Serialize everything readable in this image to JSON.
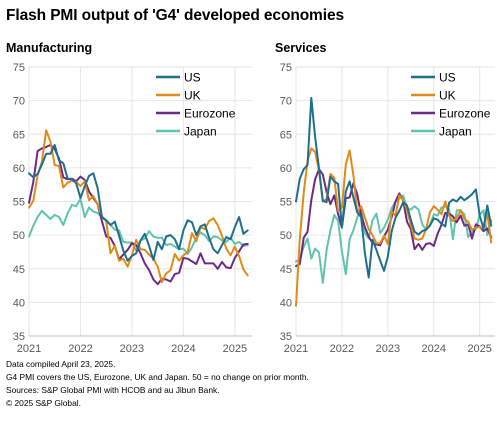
{
  "title": "Flash PMI output of 'G4' developed economies",
  "footnotes": [
    "Data compiled April 23, 2025.",
    "G4 PMI covers the US, Eurozone, UK and Japan. 50 = no change on prior month.",
    "Sources: S&P Global PMI with HCOB and au Jibun Bank.",
    "© 2025 S&P Global."
  ],
  "series_colors": {
    "US": "#1d6f8c",
    "UK": "#e08a18",
    "Eurozone": "#6b2a86",
    "Japan": "#5ec4ad"
  },
  "chart_data": [
    {
      "type": "line",
      "title": "Manufacturing",
      "xlabel": "",
      "ylabel": "",
      "ylim": [
        35,
        75
      ],
      "yticks": [
        35,
        40,
        45,
        50,
        55,
        60,
        65,
        70,
        75
      ],
      "xticks": [
        "2021",
        "2022",
        "2023",
        "2024",
        "2025"
      ],
      "x": [
        "2021-01",
        "2021-02",
        "2021-03",
        "2021-04",
        "2021-05",
        "2021-06",
        "2021-07",
        "2021-08",
        "2021-09",
        "2021-10",
        "2021-11",
        "2021-12",
        "2022-01",
        "2022-02",
        "2022-03",
        "2022-04",
        "2022-05",
        "2022-06",
        "2022-07",
        "2022-08",
        "2022-09",
        "2022-10",
        "2022-11",
        "2022-12",
        "2023-01",
        "2023-02",
        "2023-03",
        "2023-04",
        "2023-05",
        "2023-06",
        "2023-07",
        "2023-08",
        "2023-09",
        "2023-10",
        "2023-11",
        "2023-12",
        "2024-01",
        "2024-02",
        "2024-03",
        "2024-04",
        "2024-05",
        "2024-06",
        "2024-07",
        "2024-08",
        "2024-09",
        "2024-10",
        "2024-11",
        "2024-12",
        "2025-01",
        "2025-02",
        "2025-03",
        "2025-04"
      ],
      "series": [
        {
          "name": "US",
          "values": [
            59.2,
            58.6,
            59.1,
            60.5,
            62.1,
            62.1,
            63.4,
            61.1,
            60.7,
            58.4,
            58.3,
            57.7,
            55.5,
            57.3,
            58.8,
            59.2,
            57.0,
            52.7,
            52.2,
            51.5,
            52.0,
            49.9,
            47.7,
            46.2,
            46.9,
            47.3,
            49.2,
            50.2,
            48.4,
            46.3,
            49.0,
            47.9,
            49.8,
            50.0,
            49.4,
            47.9,
            50.7,
            52.2,
            51.9,
            50.0,
            51.3,
            51.6,
            49.6,
            47.9,
            47.3,
            48.5,
            49.7,
            49.4,
            51.2,
            52.7,
            50.2,
            50.7
          ]
        },
        {
          "name": "UK",
          "values": [
            54.1,
            55.1,
            58.9,
            60.9,
            65.6,
            63.9,
            60.4,
            60.3,
            57.1,
            57.8,
            58.1,
            57.9,
            57.3,
            58.0,
            55.2,
            55.8,
            54.6,
            52.8,
            52.1,
            47.3,
            48.4,
            46.2,
            46.5,
            45.3,
            47.0,
            49.3,
            47.9,
            47.8,
            47.1,
            46.5,
            45.3,
            43.0,
            44.3,
            44.8,
            47.2,
            46.2,
            47.0,
            47.5,
            50.3,
            49.1,
            51.2,
            50.9,
            52.1,
            52.5,
            51.5,
            49.9,
            48.0,
            47.0,
            48.3,
            46.9,
            44.9,
            44.0
          ]
        },
        {
          "name": "Eurozone",
          "values": [
            54.8,
            57.9,
            62.5,
            62.9,
            63.1,
            63.4,
            62.8,
            61.4,
            58.6,
            58.3,
            58.4,
            58.0,
            58.7,
            58.2,
            56.5,
            55.5,
            54.6,
            52.1,
            49.8,
            49.6,
            48.4,
            46.4,
            47.1,
            47.8,
            48.8,
            48.5,
            47.3,
            45.8,
            44.8,
            43.4,
            42.7,
            43.5,
            43.4,
            43.1,
            44.2,
            44.4,
            46.6,
            46.5,
            46.1,
            45.7,
            47.3,
            45.8,
            45.8,
            45.8,
            45.0,
            46.0,
            45.2,
            45.1,
            46.6,
            47.6,
            48.6,
            48.7
          ]
        },
        {
          "name": "Japan",
          "values": [
            49.8,
            51.4,
            52.7,
            53.6,
            53.0,
            52.4,
            53.0,
            52.7,
            51.5,
            53.2,
            54.5,
            54.3,
            55.4,
            52.7,
            54.1,
            53.5,
            53.3,
            52.7,
            52.1,
            51.5,
            50.8,
            50.7,
            49.0,
            48.9,
            48.9,
            47.7,
            49.2,
            49.5,
            50.6,
            49.8,
            49.6,
            49.6,
            48.5,
            48.7,
            48.3,
            47.9,
            48.0,
            47.2,
            48.2,
            49.6,
            50.4,
            50.0,
            49.1,
            49.8,
            49.7,
            49.2,
            49.0,
            49.6,
            48.7,
            49.0,
            48.4,
            48.5
          ]
        }
      ]
    },
    {
      "type": "line",
      "title": "Services",
      "xlabel": "",
      "ylabel": "",
      "ylim": [
        35,
        75
      ],
      "yticks": [
        35,
        40,
        45,
        50,
        55,
        60,
        65,
        70,
        75
      ],
      "xticks": [
        "2021",
        "2022",
        "2023",
        "2024",
        "2025"
      ],
      "x": [
        "2021-01",
        "2021-02",
        "2021-03",
        "2021-04",
        "2021-05",
        "2021-06",
        "2021-07",
        "2021-08",
        "2021-09",
        "2021-10",
        "2021-11",
        "2021-12",
        "2022-01",
        "2022-02",
        "2022-03",
        "2022-04",
        "2022-05",
        "2022-06",
        "2022-07",
        "2022-08",
        "2022-09",
        "2022-10",
        "2022-11",
        "2022-12",
        "2023-01",
        "2023-02",
        "2023-03",
        "2023-04",
        "2023-05",
        "2023-06",
        "2023-07",
        "2023-08",
        "2023-09",
        "2023-10",
        "2023-11",
        "2023-12",
        "2024-01",
        "2024-02",
        "2024-03",
        "2024-04",
        "2024-05",
        "2024-06",
        "2024-07",
        "2024-08",
        "2024-09",
        "2024-10",
        "2024-11",
        "2024-12",
        "2025-01",
        "2025-02",
        "2025-03",
        "2025-04"
      ],
      "series": [
        {
          "name": "US",
          "values": [
            55.0,
            58.4,
            59.8,
            60.4,
            70.4,
            64.6,
            59.9,
            55.1,
            54.9,
            58.7,
            58.0,
            57.6,
            51.2,
            56.5,
            58.0,
            55.6,
            53.4,
            52.7,
            47.3,
            43.7,
            49.3,
            47.8,
            46.2,
            44.7,
            46.8,
            50.6,
            52.6,
            53.6,
            54.9,
            54.4,
            52.3,
            50.5,
            50.1,
            50.6,
            50.8,
            51.4,
            52.5,
            52.3,
            51.7,
            51.3,
            54.8,
            55.3,
            55.0,
            55.7,
            55.2,
            55.6,
            56.1,
            56.8,
            52.9,
            51.0,
            54.4,
            51.4
          ]
        },
        {
          "name": "UK",
          "values": [
            39.5,
            49.5,
            56.3,
            61.0,
            62.9,
            62.4,
            59.6,
            55.0,
            55.4,
            59.1,
            58.5,
            53.6,
            54.1,
            60.5,
            62.6,
            58.9,
            53.4,
            54.3,
            52.6,
            50.9,
            50.0,
            48.8,
            48.8,
            49.9,
            48.7,
            53.5,
            52.9,
            55.9,
            55.2,
            53.7,
            51.5,
            49.5,
            49.3,
            49.5,
            50.9,
            53.4,
            54.3,
            53.8,
            53.1,
            55.0,
            52.9,
            52.1,
            52.5,
            53.7,
            52.4,
            52.0,
            50.8,
            51.1,
            51.2,
            51.0,
            53.2,
            48.9
          ]
        },
        {
          "name": "Eurozone",
          "values": [
            45.4,
            45.7,
            49.6,
            50.5,
            55.2,
            58.3,
            59.8,
            59.0,
            56.4,
            54.6,
            55.9,
            53.1,
            51.1,
            55.5,
            55.6,
            57.7,
            56.1,
            53.0,
            51.2,
            49.8,
            48.8,
            48.6,
            48.5,
            49.8,
            50.8,
            52.7,
            55.0,
            56.2,
            55.1,
            52.0,
            50.9,
            47.9,
            48.7,
            47.8,
            48.7,
            48.8,
            48.4,
            50.2,
            51.5,
            53.3,
            53.2,
            52.8,
            51.9,
            52.9,
            51.4,
            51.6,
            49.5,
            51.6,
            51.3,
            50.6,
            51.0,
            49.7
          ]
        },
        {
          "name": "Japan",
          "values": [
            46.1,
            46.3,
            48.3,
            49.5,
            46.5,
            48.0,
            47.4,
            42.9,
            47.8,
            50.7,
            53.0,
            52.1,
            47.6,
            44.2,
            49.4,
            50.7,
            52.6,
            54.0,
            50.3,
            49.5,
            52.2,
            53.2,
            50.3,
            51.1,
            52.3,
            54.0,
            55.0,
            55.4,
            55.9,
            54.0,
            53.8,
            54.3,
            53.8,
            51.6,
            50.8,
            51.5,
            53.1,
            52.9,
            54.1,
            54.3,
            53.8,
            49.4,
            53.7,
            53.7,
            53.1,
            49.7,
            50.5,
            50.9,
            53.0,
            53.7,
            50.0,
            52.2
          ]
        }
      ]
    }
  ]
}
